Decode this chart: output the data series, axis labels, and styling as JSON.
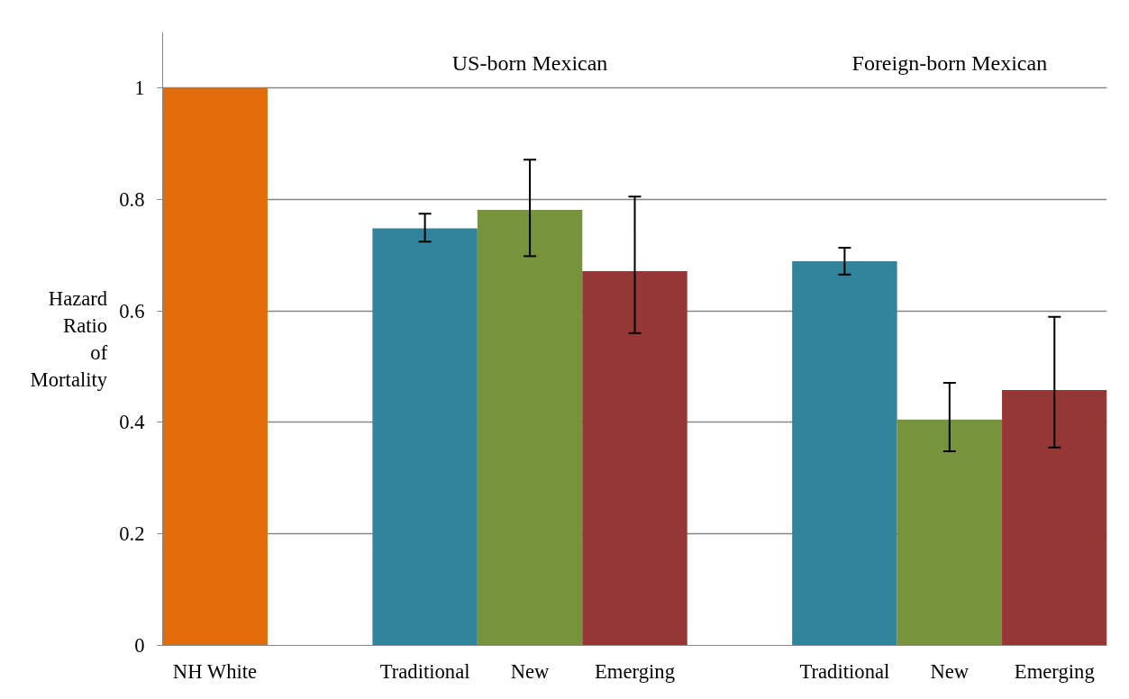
{
  "chart_data": {
    "type": "bar",
    "ylabel": "Hazard Ratio of Mortality",
    "categories": [
      "NH White",
      null,
      "Traditional",
      "New",
      "Emerging",
      null,
      "Traditional",
      "New",
      "Emerging"
    ],
    "values": [
      1.0,
      null,
      0.748,
      0.781,
      0.671,
      null,
      0.689,
      0.405,
      0.458
    ],
    "colors": [
      "#e36c0a",
      "#ffffff",
      "#31849b",
      "#77933c",
      "#953735",
      "#ffffff",
      "#31849b",
      "#77933c",
      "#953735"
    ],
    "errors": [
      null,
      null,
      [
        0.724,
        0.774
      ],
      [
        0.698,
        0.871
      ],
      [
        0.56,
        0.805
      ],
      null,
      [
        0.665,
        0.713
      ],
      [
        0.348,
        0.471
      ],
      [
        0.355,
        0.589
      ]
    ],
    "annotations": [
      "US-born Mexican",
      "Foreign-born Mexican"
    ],
    "ylim": [
      0,
      1.1
    ],
    "yticks": [
      0,
      {
        "value": 0.2,
        "label": "0.2"
      },
      {
        "value": 0.4,
        "label": "0.4"
      },
      {
        "value": 0.6,
        "label": "0.6"
      },
      {
        "value": 0.8,
        "label": "0.8"
      },
      1
    ],
    "grid": "y"
  }
}
